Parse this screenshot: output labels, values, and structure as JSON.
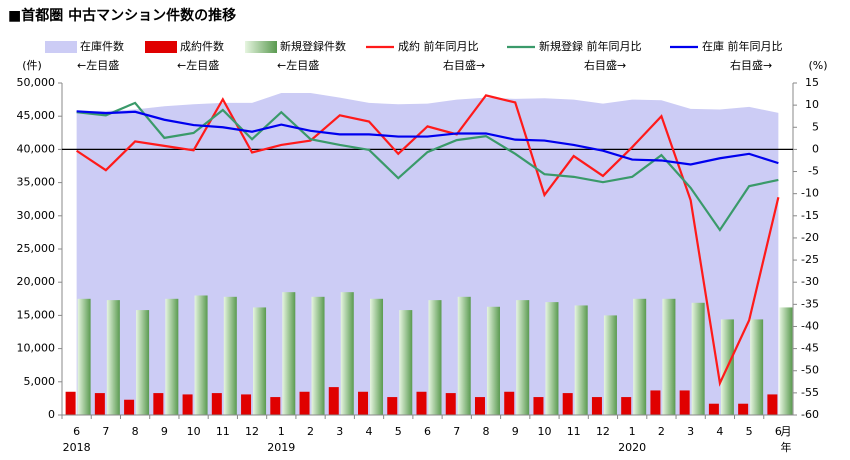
{
  "chart_data": {
    "type": "combo",
    "title": "■首都圏 中古マンション件数の推移",
    "y_unit": "(件)",
    "y2_unit": "(%)",
    "x_unit": "月",
    "year_unit": "年",
    "categories": [
      "6",
      "7",
      "8",
      "9",
      "10",
      "11",
      "12",
      "1",
      "2",
      "3",
      "4",
      "5",
      "6",
      "7",
      "8",
      "9",
      "10",
      "11",
      "12",
      "1",
      "2",
      "3",
      "4",
      "5",
      "6"
    ],
    "year_labels": [
      "2018",
      null,
      null,
      null,
      null,
      null,
      null,
      "2019",
      null,
      null,
      null,
      null,
      null,
      null,
      null,
      null,
      null,
      null,
      null,
      "2020",
      null,
      null,
      null,
      null,
      null
    ],
    "ylim": [
      0,
      50000
    ],
    "yticks": [
      0,
      {
        "value": 5000,
        "label": "5,000"
      },
      {
        "value": 10000,
        "label": "10,000"
      },
      {
        "value": 15000,
        "label": "15,000"
      },
      {
        "value": 20000,
        "label": "20,000"
      },
      {
        "value": 25000,
        "label": "25,000"
      },
      {
        "value": 30000,
        "label": "30,000"
      },
      {
        "value": 35000,
        "label": "35,000"
      },
      {
        "value": 40000,
        "label": "40,000"
      },
      {
        "value": 45000,
        "label": "45,000"
      },
      {
        "value": 50000,
        "label": "50,000"
      }
    ],
    "y2lim": [
      -60,
      15
    ],
    "y2ticks": [
      -60,
      -55,
      -50,
      -45,
      -40,
      -35,
      -30,
      -25,
      -20,
      -15,
      -10,
      -5,
      0,
      5,
      10,
      15
    ],
    "y2_reference": 0,
    "series": [
      {
        "name": "在庫件数",
        "note": "←左目盛",
        "type": "area",
        "color": "#ccccf5",
        "values": [
          45800,
          45800,
          46000,
          46500,
          46800,
          47000,
          47000,
          48500,
          48500,
          47800,
          47000,
          46800,
          46900,
          47500,
          47800,
          47600,
          47700,
          47500,
          46900,
          47500,
          47400,
          46100,
          46000,
          46400,
          45500
        ]
      },
      {
        "name": "成約件数",
        "note": "←左目盛",
        "type": "bar",
        "color": "#e00000",
        "values": [
          3500,
          3300,
          2300,
          3300,
          3100,
          3300,
          3100,
          2700,
          3500,
          4200,
          3500,
          2700,
          3500,
          3300,
          2700,
          3500,
          2700,
          3300,
          2700,
          2700,
          3700,
          3700,
          1700,
          1700,
          3100
        ]
      },
      {
        "name": "新規登録件数",
        "note": "←左目盛",
        "type": "bar",
        "color": "#7fbf7f",
        "values": [
          17500,
          17300,
          15800,
          17500,
          18000,
          17800,
          16200,
          18500,
          17800,
          18500,
          17500,
          15800,
          17300,
          17800,
          16300,
          17300,
          17000,
          16500,
          15000,
          17500,
          17500,
          16900,
          14400,
          14400,
          16200
        ]
      },
      {
        "name": "成約 前年同月比",
        "note": "右目盛→",
        "type": "line",
        "axis": "y2",
        "color": "#ff1a1a",
        "values": [
          -0.3,
          -4.7,
          1.8,
          0.8,
          -0.2,
          11.3,
          -0.7,
          1,
          2,
          7.7,
          6.3,
          -1,
          5.2,
          3.4,
          12.2,
          10.6,
          -10.3,
          -1.5,
          -6,
          0.5,
          7.5,
          -11.5,
          -52.8,
          -38.6,
          -10.8
        ]
      },
      {
        "name": "新規登録 前年同月比",
        "note": "右目盛→",
        "type": "line",
        "axis": "y2",
        "color": "#3a9a6a",
        "values": [
          8.4,
          7.7,
          10.5,
          2.6,
          3.7,
          8.9,
          2.3,
          8.4,
          2.3,
          1,
          -0.1,
          -6.5,
          -0.6,
          2.1,
          3,
          -1,
          -5.6,
          -6.2,
          -7.4,
          -6.2,
          -1.3,
          -8.7,
          -18.2,
          -8.3,
          -6.9
        ]
      },
      {
        "name": "在庫 前年同月比",
        "note": "右目盛→",
        "type": "line",
        "axis": "y2",
        "color": "#0000ee",
        "values": [
          8.6,
          8.2,
          8.5,
          6.7,
          5.5,
          5,
          4,
          5.6,
          4.2,
          3.4,
          3.4,
          2.9,
          2.9,
          3.6,
          3.6,
          2.2,
          2,
          1,
          -0.3,
          -2.3,
          -2.5,
          -3.4,
          -2,
          -1,
          -3.1
        ]
      }
    ]
  }
}
